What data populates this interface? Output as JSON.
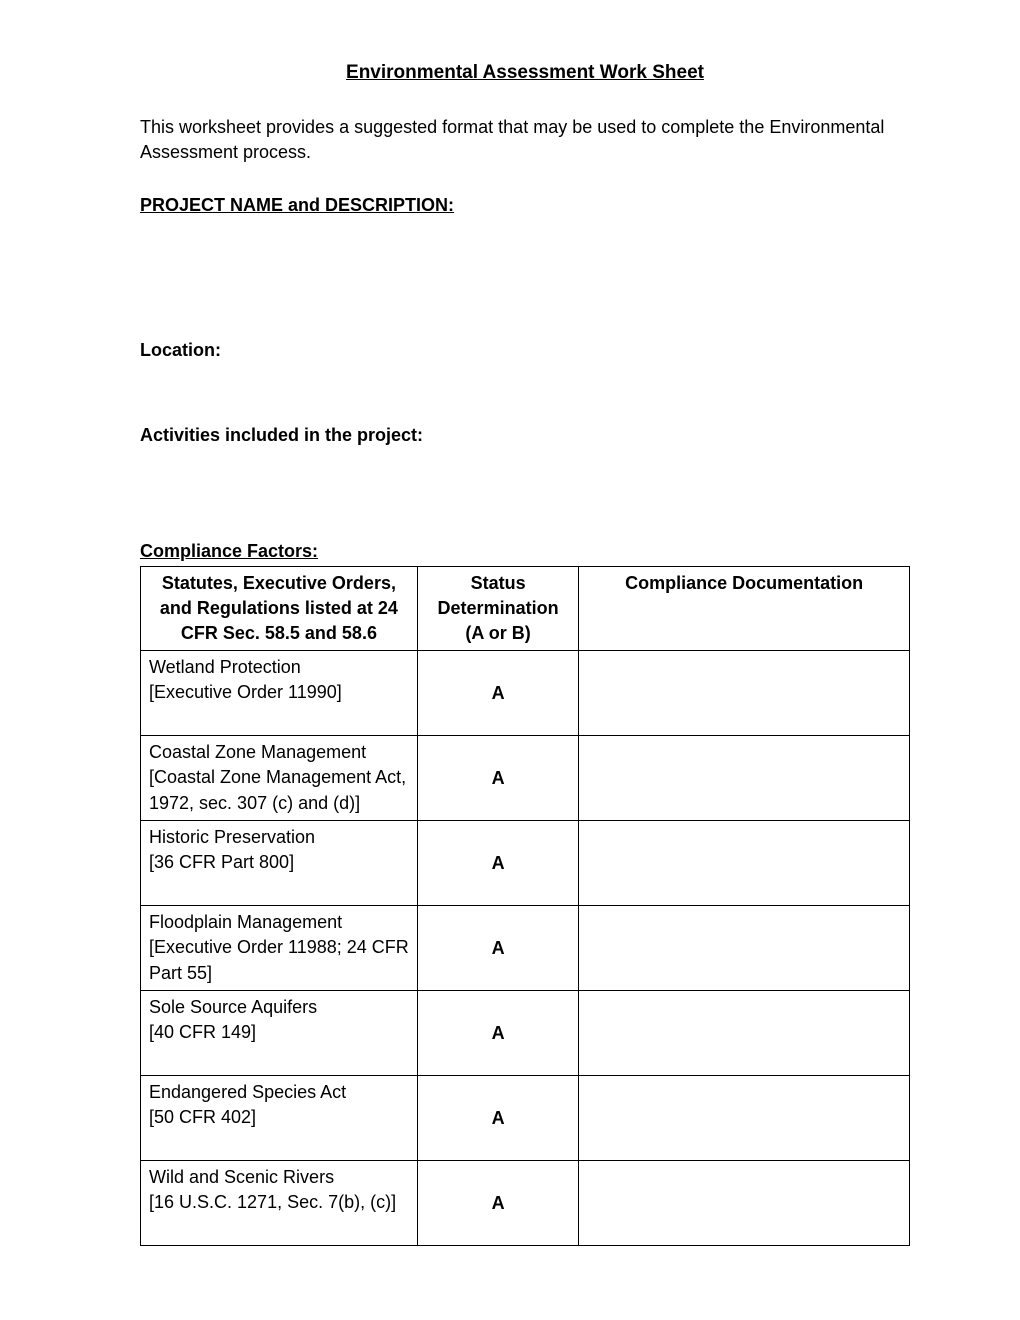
{
  "title": "Environmental Assessment Work Sheet",
  "intro": "This worksheet provides a suggested format that may be used to complete the Environmental Assessment process.",
  "headings": {
    "project": "PROJECT NAME and DESCRIPTION:",
    "location": "Location:",
    "activities": "Activities included in the project:",
    "compliance": "Compliance Factors:"
  },
  "table": {
    "headers": {
      "col1": "Statutes, Executive Orders, and Regulations listed at 24 CFR Sec. 58.5 and 58.6",
      "col2_line1": "Status Determination",
      "col2_line2": "(A or B)",
      "col3": "Compliance Documentation"
    },
    "rows": [
      {
        "name": "Wetland Protection",
        "ref": "[Executive Order 11990]",
        "status": "A",
        "doc": ""
      },
      {
        "name": "Coastal Zone Management",
        "ref": "[Coastal Zone Management Act, 1972, sec. 307 (c) and (d)]",
        "status": "A",
        "doc": ""
      },
      {
        "name": "Historic Preservation",
        "ref": "[36 CFR Part 800]",
        "status": "A",
        "doc": ""
      },
      {
        "name": "Floodplain Management",
        "ref": "[Executive Order 11988; 24 CFR Part 55]",
        "status": "A",
        "doc": ""
      },
      {
        "name": "Sole Source Aquifers",
        "ref": "[40 CFR 149]",
        "status": "A",
        "doc": ""
      },
      {
        "name": "Endangered Species Act",
        "ref": "[50 CFR 402]",
        "status": "A",
        "doc": ""
      },
      {
        "name": "Wild and Scenic Rivers",
        "ref": "[16 U.S.C. 1271, Sec. 7(b), (c)]",
        "status": "A",
        "doc": ""
      }
    ]
  }
}
